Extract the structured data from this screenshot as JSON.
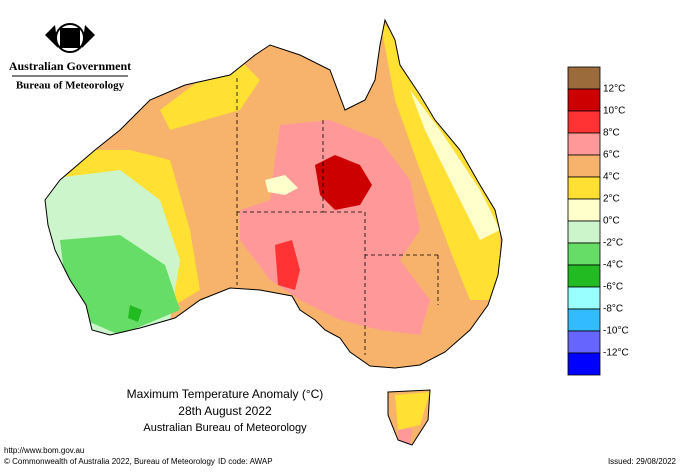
{
  "header": {
    "government": "Australian Government",
    "agency": "Bureau of Meteorology"
  },
  "map": {
    "title": "Maximum Temperature Anomaly (°C)",
    "date": "28th August 2022",
    "source": "Australian Bureau of Meteorology"
  },
  "legend": {
    "colors": [
      "#9c6b3c",
      "#cc0000",
      "#ff3333",
      "#ff9999",
      "#f7b36b",
      "#ffe033",
      "#ffffcc",
      "#ccf5cc",
      "#66dd66",
      "#22bb22",
      "#99ffff",
      "#33bbff",
      "#6666ff",
      "#0000ff"
    ],
    "labels": [
      "12°C",
      "10°C",
      "8°C",
      "6°C",
      "4°C",
      "2°C",
      "0°C",
      "-2°C",
      "-4°C",
      "-6°C",
      "-8°C",
      "-10°C",
      "-12°C"
    ]
  },
  "footer": {
    "url": "http://www.bom.gov.au",
    "copyright": "© Commonwealth of Australia 2022, Bureau of Meteorology",
    "id_code": "ID code: AWAP",
    "issued": "Issued: 29/08/2022"
  }
}
